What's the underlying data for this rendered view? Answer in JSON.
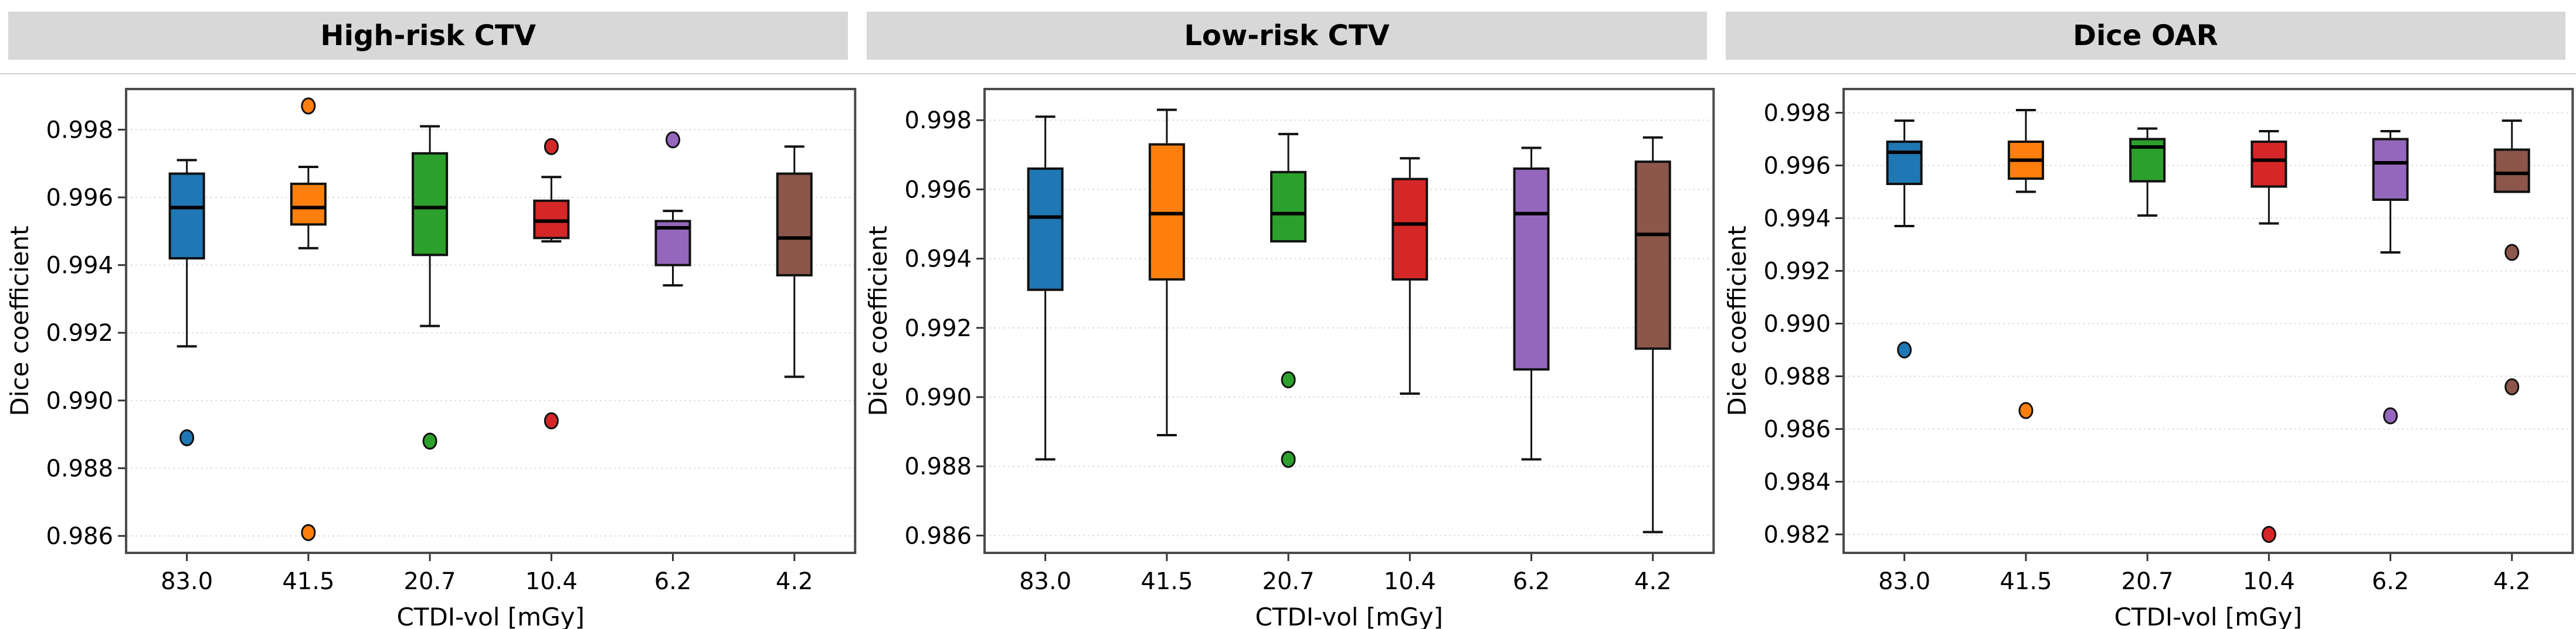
{
  "figure": {
    "background_color": "#ffffff",
    "title_band_color": "#d8d8d8",
    "y_axis_label": "Dice coefficient",
    "x_axis_label": "CTDI-vol [mGy]",
    "categories": [
      "83.0",
      "41.5",
      "20.7",
      "10.4",
      "6.2",
      "4.2"
    ]
  },
  "chart_data": [
    {
      "type": "boxplot",
      "title": "High-risk CTV",
      "xlabel": "CTDI-vol [mGy]",
      "ylabel": "Dice coefficient",
      "categories": [
        "83.0",
        "41.5",
        "20.7",
        "10.4",
        "6.2",
        "4.2"
      ],
      "ylim": [
        0.9855,
        0.9992
      ],
      "ytick_values": [
        0.998,
        0.996,
        0.994,
        0.992,
        0.99,
        0.988,
        0.986
      ],
      "ytick_labels": [
        "0.998",
        "0.996",
        "0.994",
        "0.992",
        "0.990",
        "0.988",
        "0.986"
      ],
      "grid": true,
      "series": [
        {
          "category": "83.0",
          "color": "#1f77b4",
          "whislo": 0.9916,
          "q1": 0.9942,
          "med": 0.9957,
          "q3": 0.9967,
          "whishi": 0.9971,
          "fliers": [
            0.9889
          ]
        },
        {
          "category": "41.5",
          "color": "#ff7f0e",
          "whislo": 0.9945,
          "q1": 0.9952,
          "med": 0.9957,
          "q3": 0.9964,
          "whishi": 0.9969,
          "fliers": [
            0.9987,
            0.9861
          ]
        },
        {
          "category": "20.7",
          "color": "#2ca02c",
          "whislo": 0.9922,
          "q1": 0.9943,
          "med": 0.9957,
          "q3": 0.9973,
          "whishi": 0.9981,
          "fliers": [
            0.9888
          ]
        },
        {
          "category": "10.4",
          "color": "#d62728",
          "whislo": 0.9947,
          "q1": 0.9948,
          "med": 0.9953,
          "q3": 0.9959,
          "whishi": 0.9966,
          "fliers": [
            0.9975,
            0.9894
          ]
        },
        {
          "category": "6.2",
          "color": "#9467bd",
          "whislo": 0.9934,
          "q1": 0.994,
          "med": 0.9951,
          "q3": 0.9953,
          "whishi": 0.9956,
          "fliers": [
            0.9977
          ]
        },
        {
          "category": "4.2",
          "color": "#8c564b",
          "whislo": 0.9907,
          "q1": 0.9937,
          "med": 0.9948,
          "q3": 0.9967,
          "whishi": 0.9975,
          "fliers": []
        }
      ]
    },
    {
      "type": "boxplot",
      "title": "Low-risk CTV",
      "xlabel": "CTDI-vol [mGy]",
      "ylabel": "Dice coefficient",
      "categories": [
        "83.0",
        "41.5",
        "20.7",
        "10.4",
        "6.2",
        "4.2"
      ],
      "ylim": [
        0.9855,
        0.9989
      ],
      "ytick_values": [
        0.998,
        0.996,
        0.994,
        0.992,
        0.99,
        0.988,
        0.986
      ],
      "ytick_labels": [
        "0.998",
        "0.996",
        "0.994",
        "0.992",
        "0.990",
        "0.988",
        "0.986"
      ],
      "grid": true,
      "series": [
        {
          "category": "83.0",
          "color": "#1f77b4",
          "whislo": 0.9882,
          "q1": 0.9931,
          "med": 0.9952,
          "q3": 0.9966,
          "whishi": 0.9981,
          "fliers": []
        },
        {
          "category": "41.5",
          "color": "#ff7f0e",
          "whislo": 0.9889,
          "q1": 0.9934,
          "med": 0.9953,
          "q3": 0.9973,
          "whishi": 0.9983,
          "fliers": []
        },
        {
          "category": "20.7",
          "color": "#2ca02c",
          "whislo": 0.9945,
          "q1": 0.9945,
          "med": 0.9953,
          "q3": 0.9965,
          "whishi": 0.9976,
          "fliers": [
            0.9905,
            0.9882
          ]
        },
        {
          "category": "10.4",
          "color": "#d62728",
          "whislo": 0.9901,
          "q1": 0.9934,
          "med": 0.995,
          "q3": 0.9963,
          "whishi": 0.9969,
          "fliers": []
        },
        {
          "category": "6.2",
          "color": "#9467bd",
          "whislo": 0.9882,
          "q1": 0.9908,
          "med": 0.9953,
          "q3": 0.9966,
          "whishi": 0.9972,
          "fliers": []
        },
        {
          "category": "4.2",
          "color": "#8c564b",
          "whislo": 0.9861,
          "q1": 0.9914,
          "med": 0.9947,
          "q3": 0.9968,
          "whishi": 0.9975,
          "fliers": []
        }
      ]
    },
    {
      "type": "boxplot",
      "title": "Dice OAR",
      "xlabel": "CTDI-vol [mGy]",
      "ylabel": "Dice coefficient",
      "categories": [
        "83.0",
        "41.5",
        "20.7",
        "10.4",
        "6.2",
        "4.2"
      ],
      "ylim": [
        0.9813,
        0.9989
      ],
      "ytick_values": [
        0.998,
        0.996,
        0.994,
        0.992,
        0.99,
        0.988,
        0.986,
        0.984,
        0.982
      ],
      "ytick_labels": [
        "0.998",
        "0.996",
        "0.994",
        "0.992",
        "0.990",
        "0.988",
        "0.986",
        "0.984",
        "0.982"
      ],
      "grid": true,
      "series": [
        {
          "category": "83.0",
          "color": "#1f77b4",
          "whislo": 0.9937,
          "q1": 0.9953,
          "med": 0.9965,
          "q3": 0.9969,
          "whishi": 0.9977,
          "fliers": [
            0.989
          ]
        },
        {
          "category": "41.5",
          "color": "#ff7f0e",
          "whislo": 0.995,
          "q1": 0.9955,
          "med": 0.9962,
          "q3": 0.9969,
          "whishi": 0.9981,
          "fliers": [
            0.9867
          ]
        },
        {
          "category": "20.7",
          "color": "#2ca02c",
          "whislo": 0.9941,
          "q1": 0.9954,
          "med": 0.9967,
          "q3": 0.997,
          "whishi": 0.9974,
          "fliers": []
        },
        {
          "category": "10.4",
          "color": "#d62728",
          "whislo": 0.9938,
          "q1": 0.9952,
          "med": 0.9962,
          "q3": 0.9969,
          "whishi": 0.9973,
          "fliers": [
            0.982
          ]
        },
        {
          "category": "6.2",
          "color": "#9467bd",
          "whislo": 0.9927,
          "q1": 0.9947,
          "med": 0.9961,
          "q3": 0.997,
          "whishi": 0.9973,
          "fliers": [
            0.9865
          ]
        },
        {
          "category": "4.2",
          "color": "#8c564b",
          "whislo": 0.995,
          "q1": 0.995,
          "med": 0.9957,
          "q3": 0.9966,
          "whishi": 0.9977,
          "fliers": [
            0.9927,
            0.9876
          ]
        }
      ]
    }
  ]
}
